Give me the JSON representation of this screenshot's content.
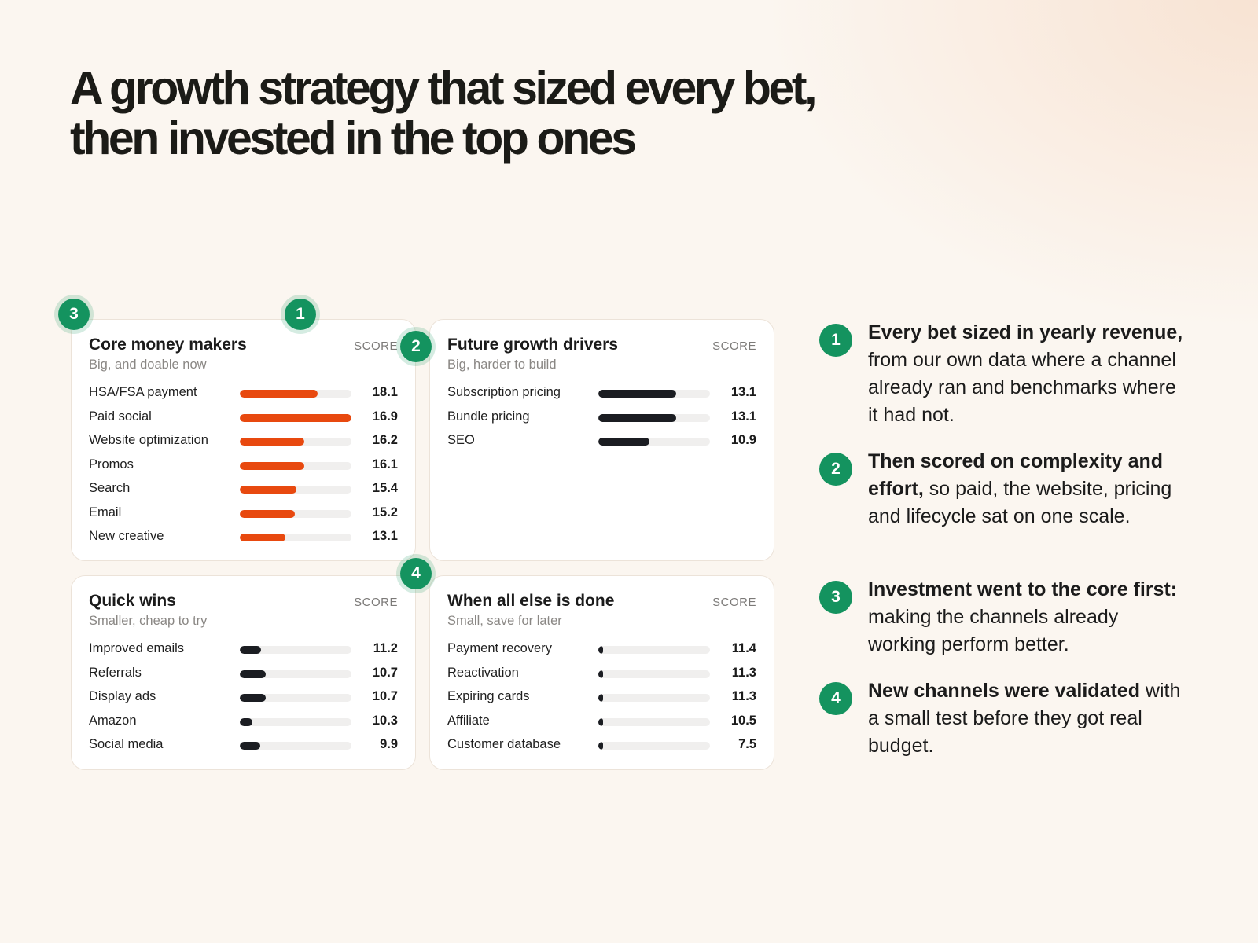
{
  "headline": "A growth strategy that sized every bet, then invested in the top ones",
  "colors": {
    "accent": "#e8490f",
    "dark_bar": "#1b1d22",
    "badge": "#14935f"
  },
  "score_max": 16.9,
  "cards": [
    {
      "title": "Core money makers",
      "subtitle": "Big, and doable now",
      "score_label": "SCORE",
      "bar_color": "accent",
      "rows": [
        {
          "label": "HSA/FSA payment",
          "value": "18.1",
          "bar": 0.7
        },
        {
          "label": "Paid social",
          "value": "16.9",
          "bar": 1.0
        },
        {
          "label": "Website optimization",
          "value": "16.2",
          "bar": 0.58
        },
        {
          "label": "Promos",
          "value": "16.1",
          "bar": 0.58
        },
        {
          "label": "Search",
          "value": "15.4",
          "bar": 0.51
        },
        {
          "label": "Email",
          "value": "15.2",
          "bar": 0.49
        },
        {
          "label": "New creative",
          "value": "13.1",
          "bar": 0.41
        }
      ]
    },
    {
      "title": "Future growth drivers",
      "subtitle": "Big, harder to build",
      "score_label": "SCORE",
      "bar_color": "dark",
      "rows": [
        {
          "label": "Subscription pricing",
          "value": "13.1",
          "bar": 0.7
        },
        {
          "label": "Bundle pricing",
          "value": "13.1",
          "bar": 0.7
        },
        {
          "label": "SEO",
          "value": "10.9",
          "bar": 0.46
        }
      ]
    },
    {
      "title": "Quick wins",
      "subtitle": "Smaller, cheap to try",
      "score_label": "SCORE",
      "bar_color": "dark",
      "rows": [
        {
          "label": "Improved emails",
          "value": "11.2",
          "bar": 0.19
        },
        {
          "label": "Referrals",
          "value": "10.7",
          "bar": 0.23
        },
        {
          "label": "Display ads",
          "value": "10.7",
          "bar": 0.23
        },
        {
          "label": "Amazon",
          "value": "10.3",
          "bar": 0.11
        },
        {
          "label": "Social media",
          "value": "9.9",
          "bar": 0.18
        }
      ]
    },
    {
      "title": "When all else is done",
      "subtitle": "Small, save for later",
      "score_label": "SCORE",
      "bar_color": "dark",
      "rows": [
        {
          "label": "Payment recovery",
          "value": "11.4",
          "bar": 0.04
        },
        {
          "label": "Reactivation",
          "value": "11.3",
          "bar": 0.04
        },
        {
          "label": "Expiring cards",
          "value": "11.3",
          "bar": 0.04
        },
        {
          "label": "Affiliate",
          "value": "10.5",
          "bar": 0.04
        },
        {
          "label": "Customer database",
          "value": "7.5",
          "bar": 0.04
        }
      ]
    }
  ],
  "badges": [
    "3",
    "1",
    "2",
    "4"
  ],
  "notes": [
    {
      "num": "1",
      "bold": "Every bet sized in yearly revenue,",
      "rest": " from our own data where a channel already ran and benchmarks where it had not."
    },
    {
      "num": "2",
      "bold": "Then scored on complexity and effort,",
      "rest": " so paid, the website, pricing and lifecycle sat on one scale."
    },
    {
      "num": "3",
      "bold": "Investment went to the core first:",
      "rest": " making the channels already working perform better."
    },
    {
      "num": "4",
      "bold": "New channels were validated",
      "rest": " with a small test before they got real budget."
    }
  ]
}
